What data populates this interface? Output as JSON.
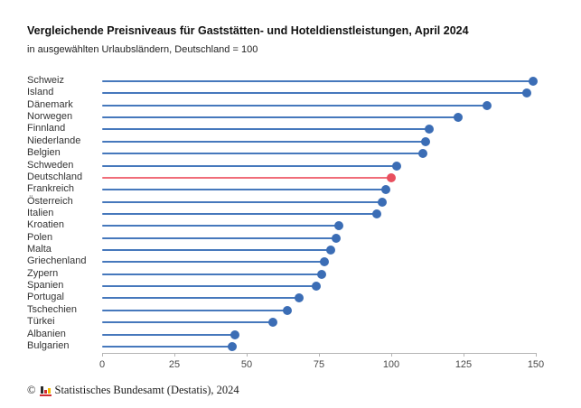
{
  "chart_data": {
    "type": "bar",
    "variant": "horizontal-lollipop",
    "title": "Vergleichende Preisniveaus für Gaststätten- und Hoteldienstleistungen, April 2024",
    "subtitle": "in ausgewählten Urlaubsländern, Deutschland = 100",
    "categories": [
      "Schweiz",
      "Island",
      "Dänemark",
      "Norwegen",
      "Finnland",
      "Niederlande",
      "Belgien",
      "Schweden",
      "Deutschland",
      "Frankreich",
      "Österreich",
      "Italien",
      "Kroatien",
      "Polen",
      "Malta",
      "Griechenland",
      "Zypern",
      "Spanien",
      "Portugal",
      "Tschechien",
      "Türkei",
      "Albanien",
      "Bulgarien"
    ],
    "values": [
      149,
      147,
      133,
      123,
      113,
      112,
      111,
      102,
      100,
      98,
      97,
      95,
      82,
      81,
      79,
      77,
      76,
      74,
      68,
      64,
      59,
      46,
      45
    ],
    "highlight_category": "Deutschland",
    "xlabel": "",
    "ylabel": "",
    "xlim": [
      0,
      150
    ],
    "x_ticks": [
      0,
      25,
      50,
      75,
      100,
      125,
      150
    ],
    "grid": "off",
    "legend": "none",
    "colors": {
      "series_line": "#4678bc",
      "series_dot": "#3b6db5",
      "highlight_line": "#f06d79",
      "highlight_dot": "#e84f5e",
      "axis": "#b5b5b5",
      "tick_label": "#484848"
    }
  },
  "footer": {
    "copyright": "©",
    "logo": "destatis-bar-chart-logo",
    "text": "Statistisches Bundesamt (Destatis), 2024"
  }
}
